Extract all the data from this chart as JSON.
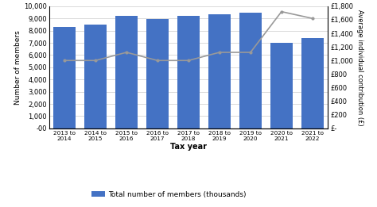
{
  "categories": [
    "2013 to\n2014",
    "2014 to\n2015",
    "2015 to\n2016",
    "2016 to\n2017",
    "2017 to\n2018",
    "2018 to\n2019",
    "2019 to\n2020",
    "2020 to\n2021",
    "2021 to\n2022"
  ],
  "bar_values": [
    8300,
    8500,
    9200,
    8950,
    9200,
    9350,
    9500,
    7000,
    7400
  ],
  "line_values": [
    1000,
    1000,
    1120,
    1000,
    1000,
    1120,
    1120,
    1720,
    1620
  ],
  "bar_color": "#4472C4",
  "line_color": "#999999",
  "ylabel_left": "Number of members",
  "ylabel_right": "Average individual contribution (£)",
  "xlabel": "Tax year",
  "ylim_left": [
    0,
    10000
  ],
  "ylim_right": [
    0,
    1800
  ],
  "yticks_left": [
    0,
    1000,
    2000,
    3000,
    4000,
    5000,
    6000,
    7000,
    8000,
    9000,
    10000
  ],
  "yticks_right": [
    0,
    200,
    400,
    600,
    800,
    1000,
    1200,
    1400,
    1600,
    1800
  ],
  "ytick_labels_left": [
    "-00",
    "1,000",
    "2,000",
    "3,000",
    "4,000",
    "5,000",
    "6,000",
    "7,000",
    "8,000",
    "9,000",
    "10,000"
  ],
  "ytick_labels_right": [
    "£-",
    "£200",
    "£400",
    "£600",
    "£800",
    "£1,000",
    "£1,200",
    "£1,400",
    "£1,600",
    "£1,800"
  ],
  "legend_label": "Total number of members (thousands)",
  "background_color": "#FFFFFF",
  "grid_color": "#CCCCCC"
}
